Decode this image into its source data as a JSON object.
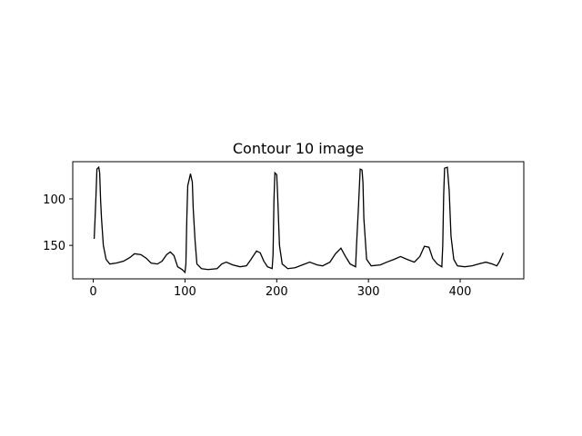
{
  "chart_data": {
    "type": "line",
    "title": "Contour 10 image",
    "x": [
      1,
      2,
      3,
      4,
      6,
      7,
      8,
      9,
      11,
      14,
      18,
      25,
      33,
      40,
      45,
      52,
      58,
      63,
      70,
      75,
      80,
      84,
      88,
      92,
      97,
      100,
      101,
      102,
      103,
      106,
      108,
      109,
      111,
      113,
      118,
      125,
      135,
      140,
      145,
      152,
      160,
      167,
      172,
      178,
      182,
      186,
      190,
      195,
      196,
      197,
      198,
      200,
      201,
      203,
      206,
      212,
      220,
      228,
      236,
      244,
      250,
      258,
      264,
      270,
      275,
      280,
      286,
      287,
      289,
      291,
      293,
      294,
      295,
      298,
      303,
      313,
      320,
      328,
      335,
      342,
      350,
      356,
      361,
      366,
      370,
      375,
      380,
      381,
      382,
      383,
      386,
      388,
      390,
      393,
      397,
      405,
      413,
      420,
      428,
      435,
      440,
      443,
      447
    ],
    "series": [
      {
        "color": "#000000",
        "values": [
          143,
          121,
          96,
          68,
          66,
          72,
          101,
          121,
          150,
          165,
          170,
          169,
          167,
          163,
          159,
          160,
          164,
          169,
          170,
          167,
          160,
          157,
          161,
          173,
          176,
          179,
          170,
          121,
          86,
          73,
          82,
          111,
          145,
          170,
          175,
          176,
          175,
          170,
          168,
          171,
          173,
          172,
          165,
          156,
          158,
          167,
          173,
          175,
          160,
          101,
          72,
          74,
          96,
          150,
          170,
          175,
          174,
          171,
          168,
          171,
          172,
          168,
          159,
          153,
          162,
          170,
          173,
          150,
          111,
          68,
          69,
          82,
          121,
          165,
          172,
          171,
          168,
          165,
          162,
          165,
          168,
          162,
          151,
          152,
          164,
          170,
          173,
          150,
          96,
          67,
          66,
          91,
          140,
          165,
          172,
          173,
          172,
          170,
          168,
          170,
          172,
          167,
          158
        ]
      }
    ],
    "xlim": [
      -22.35,
      469.35
    ],
    "ylim": [
      186,
      60
    ],
    "xticks": [
      0,
      100,
      200,
      300,
      400
    ],
    "yticks": [
      100,
      150
    ]
  }
}
